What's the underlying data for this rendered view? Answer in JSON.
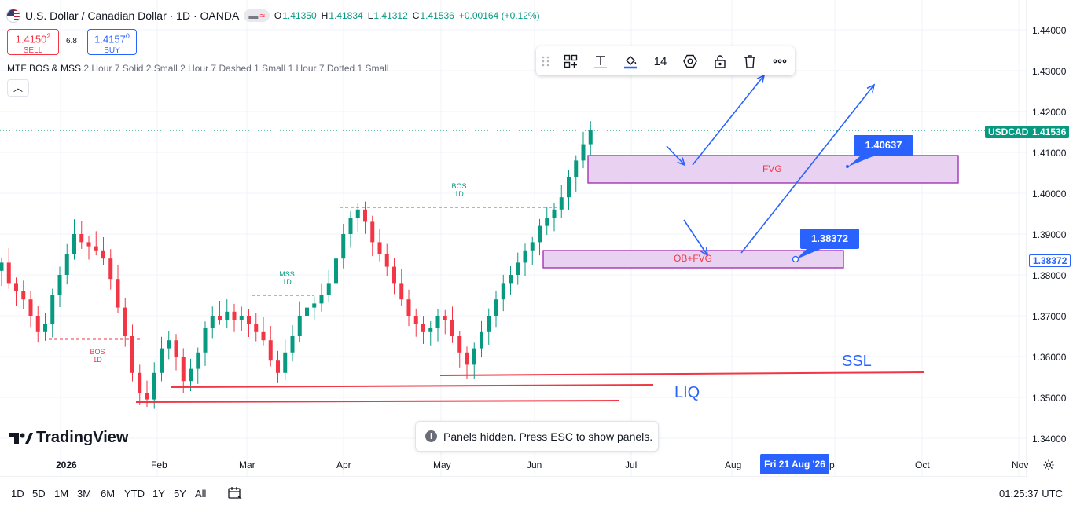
{
  "header": {
    "symbol_title": "U.S. Dollar / Canadian Dollar · 1D · OANDA",
    "ohlc": [
      {
        "k": "O",
        "v": "1.41350"
      },
      {
        "k": "H",
        "v": "1.41834"
      },
      {
        "k": "L",
        "v": "1.41312"
      },
      {
        "k": "C",
        "v": "1.41536"
      },
      {
        "k": "",
        "v": "+0.00164 (+0.12%)"
      }
    ],
    "sell": {
      "price": "1.4150",
      "sup": "2",
      "label": "SELL"
    },
    "buy": {
      "price": "1.4157",
      "sup": "0",
      "label": "BUY"
    },
    "spread": "6.8"
  },
  "indicator": {
    "name": "MTF BOS & MSS",
    "params": "2 Hour 7 Solid 2 Small 2 Hour 7 Dashed 1 Small 1 Hour 7 Dotted 1 Small"
  },
  "toolbar": {
    "items": [
      "drag-handle-icon",
      "template-icon",
      "text-icon",
      "fill-color-icon",
      "font-size",
      "settings-icon",
      "lock-icon",
      "delete-icon",
      "more-icon"
    ],
    "font_size": "14"
  },
  "price_axis": {
    "ticks": [
      "1.44000",
      "1.43000",
      "1.42000",
      "1.41000",
      "1.40000",
      "1.39000",
      "1.38000",
      "1.37000",
      "1.36000",
      "1.35000",
      "1.34000"
    ],
    "symbol_tag": "USDCAD",
    "last_price": "1.41536",
    "crosshair_price": "1.38372"
  },
  "time_axis": {
    "labels": [
      "2026",
      "Feb",
      "Mar",
      "Apr",
      "May",
      "Jun",
      "Jul",
      "Aug",
      "Oct",
      "Nov"
    ],
    "crosshair_date": "Fri 21 Aug '26",
    "hidden_fragment": "p"
  },
  "annotations": {
    "fvg_label": "FVG",
    "ob_fvg_label": "OB+FVG",
    "callout_upper": "1.40637",
    "callout_lower": "1.38372",
    "ssl": "SSL",
    "liq": "LIQ",
    "bos_top": {
      "l1": "BOS",
      "l2": "1D"
    },
    "mss": {
      "l1": "MSS",
      "l2": "1D"
    },
    "bos_bottom": {
      "l1": "BOS",
      "l2": "1D"
    }
  },
  "colors": {
    "up": "#089981",
    "down": "#f23645",
    "accent": "#2962ff",
    "zone_fill": "#e9d1f2",
    "zone_border": "#9c27b0"
  },
  "brand": {
    "logo_text": "TradingView"
  },
  "toast": {
    "text": "Panels hidden. Press ESC to show panels."
  },
  "bottom_bar": {
    "ranges": [
      "1D",
      "5D",
      "1M",
      "3M",
      "6M",
      "YTD",
      "1Y",
      "5Y",
      "All"
    ],
    "clock": "01:25:37 UTC"
  },
  "chart_data": {
    "type": "candlestick",
    "y_axis_ticks": [
      1.34,
      1.35,
      1.36,
      1.37,
      1.38,
      1.39,
      1.4,
      1.41,
      1.42,
      1.43,
      1.44
    ],
    "last_close": 1.41536,
    "closes": [
      1.383,
      1.378,
      1.376,
      1.374,
      1.37,
      1.366,
      1.368,
      1.375,
      1.38,
      1.385,
      1.39,
      1.388,
      1.387,
      1.386,
      1.384,
      1.379,
      1.372,
      1.365,
      1.356,
      1.351,
      1.3495,
      1.356,
      1.362,
      1.364,
      1.36,
      1.354,
      1.357,
      1.361,
      1.367,
      1.37,
      1.369,
      1.371,
      1.369,
      1.37,
      1.368,
      1.366,
      1.364,
      1.359,
      1.356,
      1.361,
      1.365,
      1.37,
      1.372,
      1.373,
      1.375,
      1.378,
      1.384,
      1.39,
      1.394,
      1.396,
      1.393,
      1.388,
      1.385,
      1.382,
      1.378,
      1.374,
      1.37,
      1.368,
      1.366,
      1.367,
      1.37,
      1.369,
      1.365,
      1.361,
      1.358,
      1.362,
      1.366,
      1.37,
      1.374,
      1.378,
      1.38,
      1.383,
      1.386,
      1.388,
      1.392,
      1.394,
      1.396,
      1.399,
      1.404,
      1.408,
      1.412,
      1.4154
    ]
  }
}
